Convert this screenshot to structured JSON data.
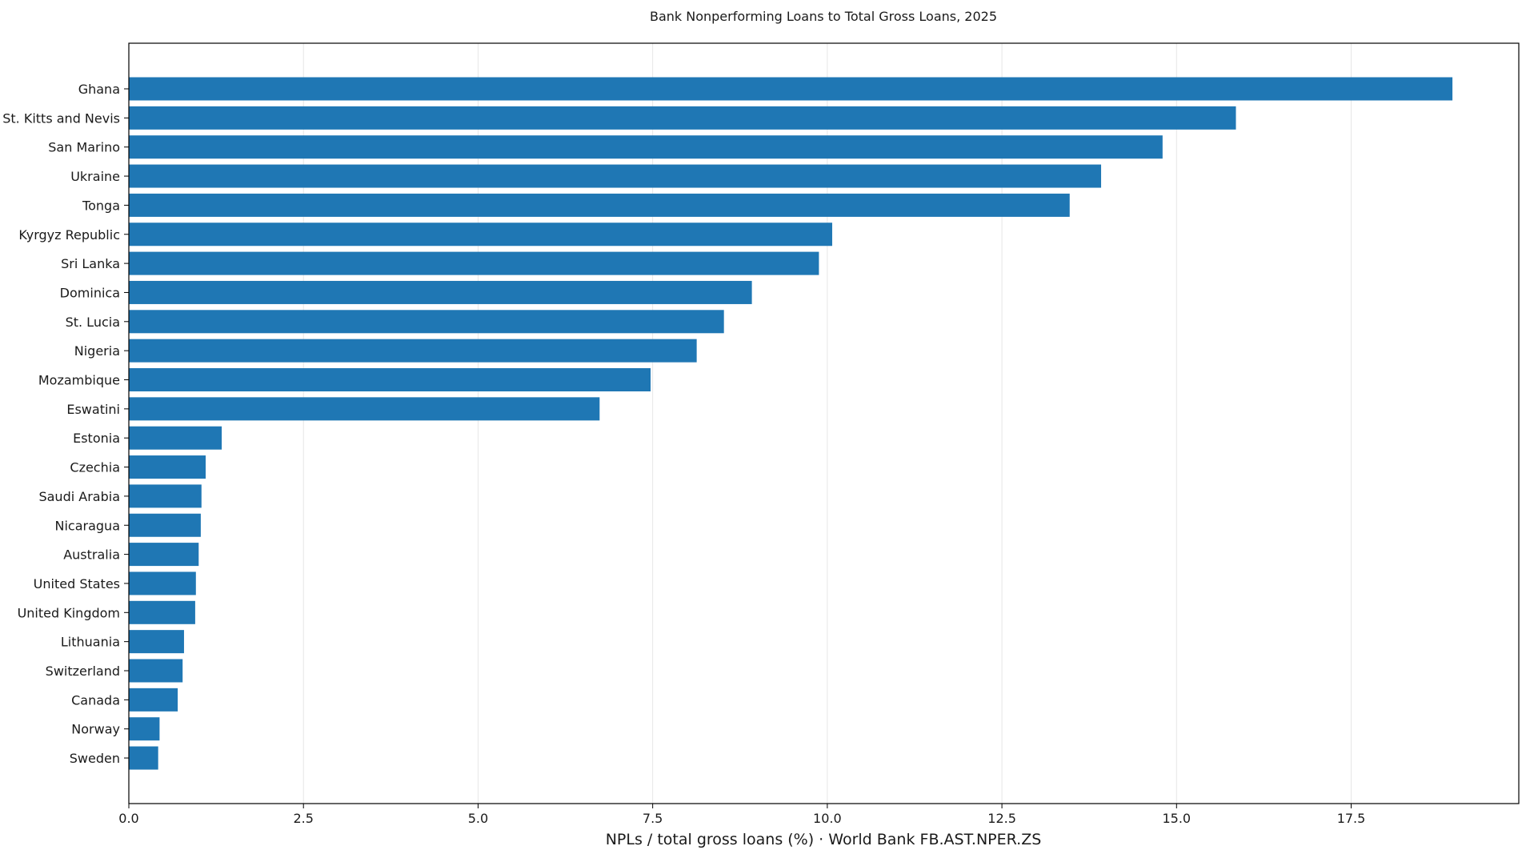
{
  "chart_data": {
    "type": "bar",
    "orientation": "horizontal",
    "title": "Bank Nonperforming Loans to Total Gross Loans, 2025",
    "xlabel": "NPLs / total gross loans (%) · World Bank FB.AST.NPER.ZS",
    "ylabel": "",
    "xlim": [
      0,
      19.9
    ],
    "x_ticks": [
      0,
      2.5,
      5,
      7.5,
      10,
      12.5,
      15,
      17.5
    ],
    "x_tick_labels": [
      "0.0",
      "2.5",
      "5.0",
      "7.5",
      "10.0",
      "12.5",
      "15.0",
      "17.5"
    ],
    "grid": "vertical",
    "bar_color": "#1f77b4",
    "categories": [
      "Ghana",
      "St. Kitts and Nevis",
      "San Marino",
      "Ukraine",
      "Tonga",
      "Kyrgyz Republic",
      "Sri Lanka",
      "Dominica",
      "St. Lucia",
      "Nigeria",
      "Mozambique",
      "Eswatini",
      "Estonia",
      "Czechia",
      "Saudi Arabia",
      "Nicaragua",
      "Australia",
      "United States",
      "United Kingdom",
      "Lithuania",
      "Switzerland",
      "Canada",
      "Norway",
      "Sweden"
    ],
    "values": [
      18.95,
      15.85,
      14.8,
      13.92,
      13.47,
      10.07,
      9.88,
      8.92,
      8.52,
      8.13,
      7.47,
      6.74,
      1.33,
      1.1,
      1.04,
      1.03,
      1.0,
      0.96,
      0.95,
      0.79,
      0.77,
      0.7,
      0.44,
      0.42
    ]
  }
}
